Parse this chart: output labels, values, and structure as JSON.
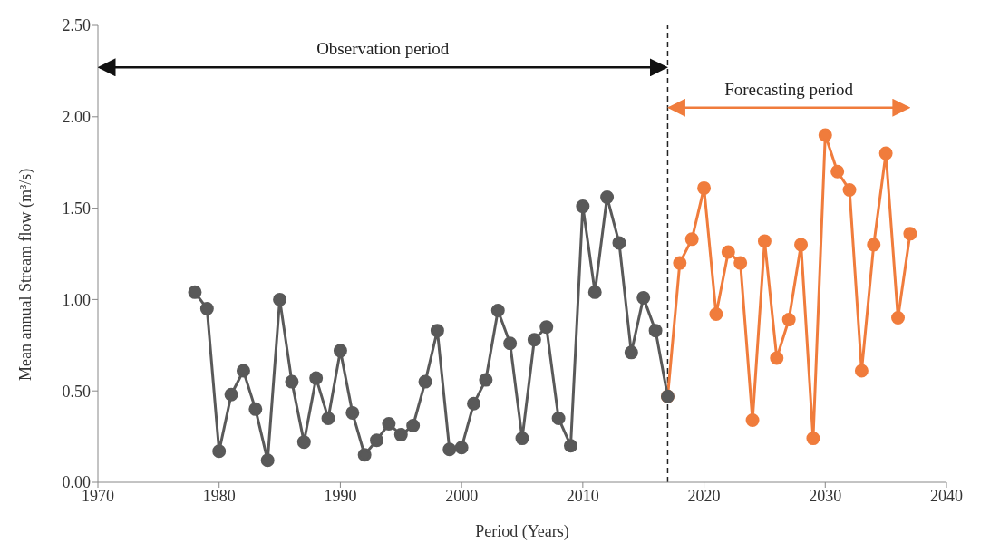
{
  "chart_data": {
    "type": "line",
    "xlabel": "Period (Years)",
    "ylabel": "Mean annual Stream flow (m³/s)",
    "xlim": [
      1970,
      2040
    ],
    "xticks": [
      1970,
      1980,
      1990,
      2000,
      2010,
      2020,
      2030,
      2040
    ],
    "ylim": [
      0,
      2.5
    ],
    "yticks": [
      {
        "value": 0,
        "label": "0.00"
      },
      {
        "value": 0.5,
        "label": "0.50"
      },
      {
        "value": 1,
        "label": "1.00"
      },
      {
        "value": 1.5,
        "label": "1.50"
      },
      {
        "value": 2,
        "label": "2.00"
      },
      {
        "value": 2.5,
        "label": "2.50"
      }
    ],
    "grid": false,
    "legend": false,
    "marker": "circle",
    "line_style": "solid",
    "series": [
      {
        "color": "#f07c3c",
        "x": [
          2017,
          2018,
          2019,
          2020,
          2021,
          2022,
          2023,
          2024,
          2025,
          2026,
          2027,
          2028,
          2029,
          2030,
          2031,
          2032,
          2033,
          2034,
          2035,
          2036,
          2037
        ],
        "values": [
          0.47,
          1.2,
          1.33,
          1.61,
          0.92,
          1.26,
          1.2,
          0.34,
          1.32,
          0.68,
          0.89,
          1.3,
          0.24,
          1.9,
          1.7,
          1.6,
          0.61,
          1.3,
          1.8,
          0.9,
          1.36
        ]
      },
      {
        "color": "#595959",
        "x": [
          1978,
          1979,
          1980,
          1981,
          1982,
          1983,
          1984,
          1985,
          1986,
          1987,
          1988,
          1989,
          1990,
          1991,
          1992,
          1993,
          1994,
          1995,
          1996,
          1997,
          1998,
          1999,
          2000,
          2001,
          2002,
          2003,
          2004,
          2005,
          2006,
          2007,
          2008,
          2009,
          2010,
          2011,
          2012,
          2013,
          2014,
          2015,
          2016,
          2017
        ],
        "values": [
          1.04,
          0.95,
          0.17,
          0.48,
          0.61,
          0.4,
          0.12,
          1.0,
          0.55,
          0.22,
          0.57,
          0.35,
          0.72,
          0.38,
          0.15,
          0.23,
          0.32,
          0.26,
          0.31,
          0.55,
          0.83,
          0.18,
          0.19,
          0.43,
          0.56,
          0.94,
          0.76,
          0.24,
          0.78,
          0.85,
          0.35,
          0.2,
          1.51,
          1.04,
          1.56,
          1.31,
          0.71,
          1.01,
          0.83,
          0.47
        ]
      }
    ],
    "ref_lines": [
      {
        "axis": "x",
        "value": 2017,
        "color": "#222222",
        "line_style": "dashed"
      }
    ],
    "annotations": [
      "Observation period",
      "Forecasting period"
    ]
  }
}
